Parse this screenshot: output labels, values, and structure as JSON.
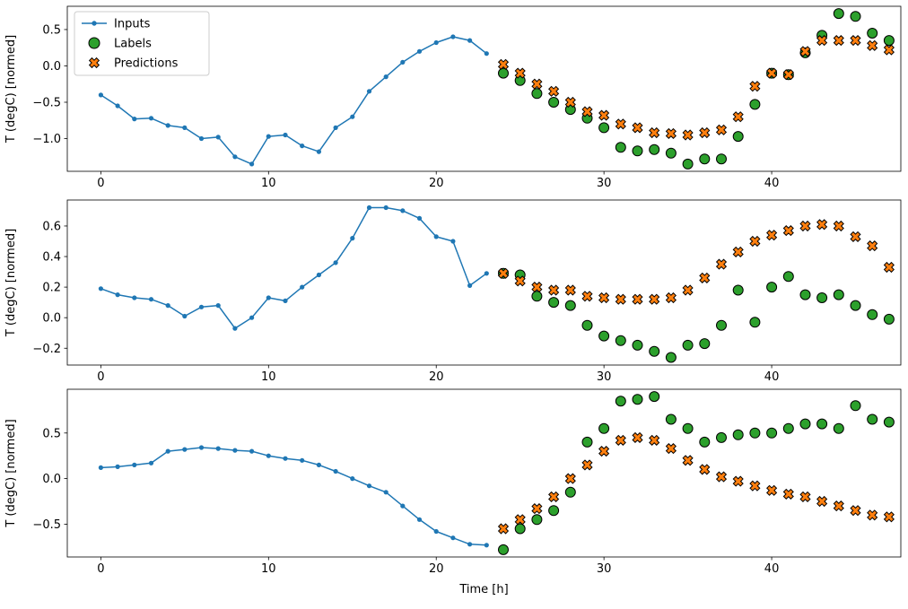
{
  "figure": {
    "background": "#ffffff",
    "xlabel": "Time [h]",
    "ylabel": "T (degC) [normed]",
    "legend": {
      "position": "upper-left",
      "entries": [
        {
          "label": "Inputs",
          "marker": "line-dot",
          "color": "#1f77b4"
        },
        {
          "label": "Labels",
          "marker": "circle",
          "color": "#2ca02c",
          "edge": "#000000"
        },
        {
          "label": "Predictions",
          "marker": "x",
          "color": "#ff7f0e",
          "edge": "#000000"
        }
      ]
    }
  },
  "chart_data": [
    {
      "type": "line",
      "title": "",
      "ylabel": "T (degC) [normed]",
      "xlabel": "",
      "xlim": [
        -2.0,
        47.7
      ],
      "ylim": [
        -1.45,
        0.82
      ],
      "xticks": [
        0,
        10,
        20,
        30,
        40
      ],
      "yticks": [
        0.5,
        0.0,
        -0.5,
        -1.0
      ],
      "grid": false,
      "series": [
        {
          "name": "Inputs",
          "style": "line-dot",
          "color": "#1f77b4",
          "x": [
            0,
            1,
            2,
            3,
            4,
            5,
            6,
            7,
            8,
            9,
            10,
            11,
            12,
            13,
            14,
            15,
            16,
            17,
            18,
            19,
            20,
            21,
            22,
            23
          ],
          "y": [
            -0.4,
            -0.55,
            -0.73,
            -0.72,
            -0.82,
            -0.85,
            -1.0,
            -0.98,
            -1.25,
            -1.35,
            -0.97,
            -0.95,
            -1.1,
            -1.18,
            -0.85,
            -0.7,
            -0.35,
            -0.15,
            0.05,
            0.2,
            0.32,
            0.4,
            0.35,
            0.17
          ]
        },
        {
          "name": "Labels",
          "style": "circle",
          "color": "#2ca02c",
          "edge": "#000000",
          "x": [
            24,
            25,
            26,
            27,
            28,
            29,
            30,
            31,
            32,
            33,
            34,
            35,
            36,
            37,
            38,
            39,
            40,
            41,
            42,
            43,
            44,
            45,
            46,
            47
          ],
          "y": [
            -0.1,
            -0.2,
            -0.38,
            -0.5,
            -0.6,
            -0.72,
            -0.85,
            -1.12,
            -1.17,
            -1.15,
            -1.2,
            -1.35,
            -1.28,
            -1.28,
            -0.97,
            -0.53,
            -0.1,
            -0.12,
            0.18,
            0.42,
            0.72,
            0.68,
            0.45,
            0.35
          ]
        },
        {
          "name": "Predictions",
          "style": "x",
          "color": "#ff7f0e",
          "edge": "#000000",
          "x": [
            24,
            25,
            26,
            27,
            28,
            29,
            30,
            31,
            32,
            33,
            34,
            35,
            36,
            37,
            38,
            39,
            40,
            41,
            42,
            43,
            44,
            45,
            46,
            47
          ],
          "y": [
            0.02,
            -0.1,
            -0.25,
            -0.35,
            -0.5,
            -0.63,
            -0.68,
            -0.8,
            -0.85,
            -0.92,
            -0.93,
            -0.95,
            -0.92,
            -0.88,
            -0.7,
            -0.28,
            -0.1,
            -0.12,
            0.2,
            0.35,
            0.35,
            0.35,
            0.28,
            0.22
          ]
        }
      ]
    },
    {
      "type": "line",
      "title": "",
      "ylabel": "T (degC) [normed]",
      "xlabel": "",
      "xlim": [
        -2.0,
        47.7
      ],
      "ylim": [
        -0.31,
        0.77
      ],
      "xticks": [
        0,
        10,
        20,
        30,
        40
      ],
      "yticks": [
        0.6,
        0.4,
        0.2,
        0.0,
        -0.2
      ],
      "grid": false,
      "series": [
        {
          "name": "Inputs",
          "style": "line-dot",
          "color": "#1f77b4",
          "x": [
            0,
            1,
            2,
            3,
            4,
            5,
            6,
            7,
            8,
            9,
            10,
            11,
            12,
            13,
            14,
            15,
            16,
            17,
            18,
            19,
            20,
            21,
            22,
            23
          ],
          "y": [
            0.19,
            0.15,
            0.13,
            0.12,
            0.08,
            0.01,
            0.07,
            0.08,
            -0.07,
            0.0,
            0.13,
            0.11,
            0.2,
            0.28,
            0.36,
            0.52,
            0.72,
            0.72,
            0.7,
            0.65,
            0.53,
            0.5,
            0.21,
            0.29
          ]
        },
        {
          "name": "Labels",
          "style": "circle",
          "color": "#2ca02c",
          "edge": "#000000",
          "x": [
            24,
            25,
            26,
            27,
            28,
            29,
            30,
            31,
            32,
            33,
            34,
            35,
            36,
            37,
            38,
            39,
            40,
            41,
            42,
            43,
            44,
            45,
            46,
            47
          ],
          "y": [
            0.29,
            0.28,
            0.14,
            0.1,
            0.08,
            -0.05,
            -0.12,
            -0.15,
            -0.18,
            -0.22,
            -0.26,
            -0.18,
            -0.17,
            -0.05,
            0.18,
            -0.03,
            0.2,
            0.27,
            0.15,
            0.13,
            0.15,
            0.08,
            0.02,
            -0.01
          ]
        },
        {
          "name": "Predictions",
          "style": "x",
          "color": "#ff7f0e",
          "edge": "#000000",
          "x": [
            24,
            25,
            26,
            27,
            28,
            29,
            30,
            31,
            32,
            33,
            34,
            35,
            36,
            37,
            38,
            39,
            40,
            41,
            42,
            43,
            44,
            45,
            46,
            47
          ],
          "y": [
            0.29,
            0.24,
            0.2,
            0.18,
            0.18,
            0.14,
            0.13,
            0.12,
            0.12,
            0.12,
            0.13,
            0.18,
            0.26,
            0.35,
            0.43,
            0.5,
            0.54,
            0.57,
            0.6,
            0.61,
            0.6,
            0.53,
            0.47,
            0.33
          ]
        }
      ]
    },
    {
      "type": "line",
      "title": "",
      "ylabel": "T (degC) [normed]",
      "xlabel": "Time [h]",
      "xlim": [
        -2.0,
        47.7
      ],
      "ylim": [
        -0.86,
        0.98
      ],
      "xticks": [
        0,
        10,
        20,
        30,
        40
      ],
      "yticks": [
        0.5,
        0.0,
        -0.5
      ],
      "grid": false,
      "series": [
        {
          "name": "Inputs",
          "style": "line-dot",
          "color": "#1f77b4",
          "x": [
            0,
            1,
            2,
            3,
            4,
            5,
            6,
            7,
            8,
            9,
            10,
            11,
            12,
            13,
            14,
            15,
            16,
            17,
            18,
            19,
            20,
            21,
            22,
            23
          ],
          "y": [
            0.12,
            0.13,
            0.15,
            0.17,
            0.3,
            0.32,
            0.34,
            0.33,
            0.31,
            0.3,
            0.25,
            0.22,
            0.2,
            0.15,
            0.08,
            0.0,
            -0.08,
            -0.15,
            -0.3,
            -0.45,
            -0.58,
            -0.65,
            -0.72,
            -0.73
          ]
        },
        {
          "name": "Labels",
          "style": "circle",
          "color": "#2ca02c",
          "edge": "#000000",
          "x": [
            24,
            25,
            26,
            27,
            28,
            29,
            30,
            31,
            32,
            33,
            34,
            35,
            36,
            37,
            38,
            39,
            40,
            41,
            42,
            43,
            44,
            45,
            46,
            47
          ],
          "y": [
            -0.78,
            -0.55,
            -0.45,
            -0.35,
            -0.15,
            0.4,
            0.55,
            0.85,
            0.87,
            0.9,
            0.65,
            0.55,
            0.4,
            0.45,
            0.48,
            0.5,
            0.5,
            0.55,
            0.6,
            0.6,
            0.55,
            0.8,
            0.65,
            0.62
          ]
        },
        {
          "name": "Predictions",
          "style": "x",
          "color": "#ff7f0e",
          "edge": "#000000",
          "x": [
            24,
            25,
            26,
            27,
            28,
            29,
            30,
            31,
            32,
            33,
            34,
            35,
            36,
            37,
            38,
            39,
            40,
            41,
            42,
            43,
            44,
            45,
            46,
            47
          ],
          "y": [
            -0.55,
            -0.45,
            -0.33,
            -0.2,
            0.0,
            0.15,
            0.3,
            0.42,
            0.45,
            0.42,
            0.33,
            0.2,
            0.1,
            0.02,
            -0.03,
            -0.08,
            -0.13,
            -0.17,
            -0.2,
            -0.25,
            -0.3,
            -0.35,
            -0.4,
            -0.42
          ]
        }
      ]
    }
  ]
}
